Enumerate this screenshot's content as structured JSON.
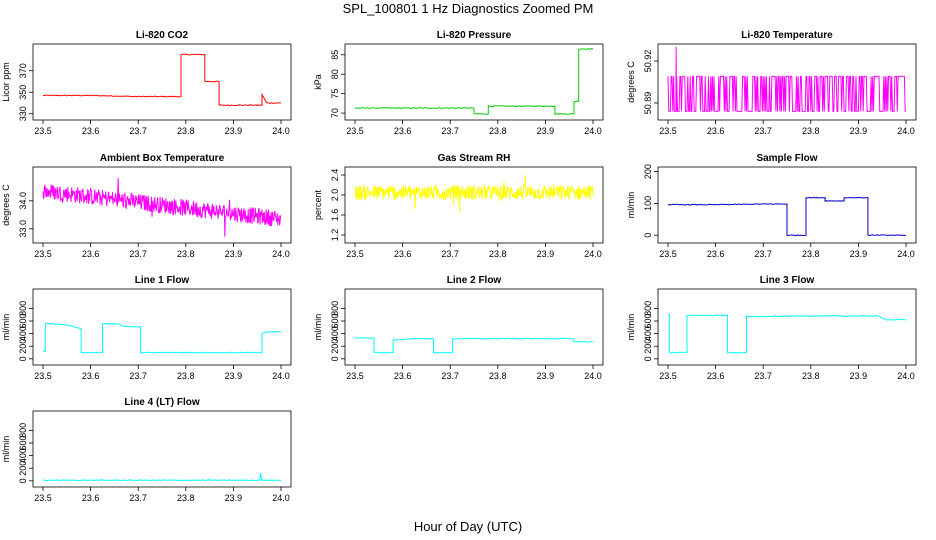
{
  "figure": {
    "title": "SPL_100801  1 Hz Diagnostics Zoomed PM",
    "xlabel": "Hour of Day (UTC)"
  },
  "chart_data": [
    {
      "type": "line",
      "title": "Li-820 CO2",
      "ylabel": "Licor ppm",
      "color": "#ff0000",
      "xlim": [
        23.5,
        24.0
      ],
      "ylim": [
        327,
        392
      ],
      "xticks": [
        23.5,
        23.6,
        23.7,
        23.8,
        23.9,
        24.0
      ],
      "xtick_labels": [
        "23.5",
        "23.6",
        "23.7",
        "23.8",
        "23.9",
        "24.0"
      ],
      "yticks": [
        330,
        350,
        370
      ],
      "ytick_labels": [
        "330",
        "350",
        "370"
      ],
      "x": [
        23.5,
        23.6,
        23.7,
        23.79,
        23.79,
        23.84,
        23.84,
        23.87,
        23.87,
        23.96,
        23.96,
        23.97,
        24.0
      ],
      "y": [
        347,
        347,
        346,
        346,
        385,
        385,
        360,
        360,
        338,
        338,
        348,
        340,
        340
      ]
    },
    {
      "type": "line",
      "title": "Li-820 Pressure",
      "ylabel": "kPa",
      "color": "#00cc00",
      "xlim": [
        23.5,
        24.0
      ],
      "ylim": [
        69,
        87
      ],
      "xticks": [
        23.5,
        23.6,
        23.7,
        23.8,
        23.9,
        24.0
      ],
      "xtick_labels": [
        "23.5",
        "23.6",
        "23.7",
        "23.8",
        "23.9",
        "24.0"
      ],
      "yticks": [
        70,
        75,
        80,
        85
      ],
      "ytick_labels": [
        "70",
        "75",
        "80",
        "85"
      ],
      "x": [
        23.5,
        23.6,
        23.75,
        23.75,
        23.78,
        23.78,
        23.83,
        23.92,
        23.92,
        23.96,
        23.96,
        23.97,
        23.97,
        24.0
      ],
      "y": [
        71.3,
        71.3,
        71.3,
        69.8,
        69.8,
        71.8,
        71.8,
        71.8,
        69.8,
        69.8,
        73,
        73,
        86.5,
        86.5
      ]
    },
    {
      "type": "line",
      "title": "Li-820 Temperature",
      "ylabel": "degrees C",
      "color": "#ff00ff",
      "xlim": [
        23.5,
        24.0
      ],
      "ylim": [
        50.88,
        50.93
      ],
      "xticks": [
        23.5,
        23.6,
        23.7,
        23.8,
        23.9,
        24.0
      ],
      "xtick_labels": [
        "23.5",
        "23.6",
        "23.7",
        "23.8",
        "23.9",
        "24.0"
      ],
      "yticks": [
        50.89,
        50.92
      ],
      "ytick_labels": [
        "50.89",
        "50.92"
      ],
      "noise": {
        "low": 50.884,
        "high": 50.909,
        "spikes_x": [
          23.517
        ],
        "spikes_y": [
          50.93
        ]
      }
    },
    {
      "type": "line",
      "title": "Ambient Box Temperature",
      "ylabel": "degrees C",
      "color": "#ff00ff",
      "xlim": [
        23.5,
        24.0
      ],
      "ylim": [
        32.6,
        35.1
      ],
      "xticks": [
        23.5,
        23.6,
        23.7,
        23.8,
        23.9,
        24.0
      ],
      "xtick_labels": [
        "23.5",
        "23.6",
        "23.7",
        "23.8",
        "23.9",
        "24.0"
      ],
      "yticks": [
        33.0,
        34.0
      ],
      "ytick_labels": [
        "33.0",
        "34.0"
      ],
      "trend": {
        "x": [
          23.5,
          24.0
        ],
        "y": [
          34.35,
          33.35
        ],
        "noise": 0.3
      }
    },
    {
      "type": "line",
      "title": "Gas Stream RH",
      "ylabel": "percent",
      "color": "#ffff00",
      "xlim": [
        23.5,
        24.0
      ],
      "ylim": [
        1.1,
        2.5
      ],
      "xticks": [
        23.5,
        23.6,
        23.7,
        23.8,
        23.9,
        24.0
      ],
      "xtick_labels": [
        "23.5",
        "23.6",
        "23.7",
        "23.8",
        "23.9",
        "24.0"
      ],
      "yticks": [
        1.2,
        1.6,
        2.0,
        2.4
      ],
      "ytick_labels": [
        "1.2",
        "1.6",
        "2.0",
        "2.4"
      ],
      "trend": {
        "x": [
          23.5,
          24.0
        ],
        "y": [
          2.05,
          2.05
        ],
        "noise": 0.15
      }
    },
    {
      "type": "line",
      "title": "Sample Flow",
      "ylabel": "ml/min",
      "color": "#0000cc",
      "xlim": [
        23.5,
        24.0
      ],
      "ylim": [
        -15,
        205
      ],
      "xticks": [
        23.5,
        23.6,
        23.7,
        23.8,
        23.9,
        24.0
      ],
      "xtick_labels": [
        "23.5",
        "23.6",
        "23.7",
        "23.8",
        "23.9",
        "24.0"
      ],
      "yticks": [
        0,
        100,
        200
      ],
      "ytick_labels": [
        "0",
        "100",
        "200"
      ],
      "x": [
        23.5,
        23.55,
        23.6,
        23.7,
        23.75,
        23.75,
        23.79,
        23.79,
        23.83,
        23.83,
        23.87,
        23.87,
        23.92,
        23.92,
        24.0
      ],
      "y": [
        96,
        96,
        96,
        98,
        98,
        0,
        0,
        118,
        118,
        108,
        108,
        118,
        118,
        0,
        0
      ]
    },
    {
      "type": "line",
      "title": "Line 1 Flow",
      "ylabel": "ml/min",
      "color": "#00ffff",
      "xlim": [
        23.5,
        24.0
      ],
      "ylim": [
        -50,
        1060
      ],
      "xticks": [
        23.5,
        23.6,
        23.7,
        23.8,
        23.9,
        24.0
      ],
      "xtick_labels": [
        "23.5",
        "23.6",
        "23.7",
        "23.8",
        "23.9",
        "24.0"
      ],
      "yticks": [
        0,
        200,
        400,
        600,
        800
      ],
      "ytick_labels": [
        "0",
        "200",
        "400",
        "600",
        "800"
      ],
      "x": [
        23.5,
        23.505,
        23.505,
        23.55,
        23.58,
        23.58,
        23.625,
        23.625,
        23.66,
        23.67,
        23.705,
        23.705,
        23.96,
        23.96,
        23.97,
        24.0
      ],
      "y": [
        120,
        120,
        560,
        540,
        480,
        100,
        100,
        560,
        550,
        510,
        510,
        100,
        100,
        400,
        430,
        430
      ]
    },
    {
      "type": "line",
      "title": "Line 2 Flow",
      "ylabel": "ml/min",
      "color": "#00ffff",
      "xlim": [
        23.5,
        24.0
      ],
      "ylim": [
        -50,
        1060
      ],
      "xticks": [
        23.5,
        23.6,
        23.7,
        23.8,
        23.9,
        24.0
      ],
      "xtick_labels": [
        "23.5",
        "23.6",
        "23.7",
        "23.8",
        "23.9",
        "24.0"
      ],
      "yticks": [
        0,
        200,
        400,
        600,
        800
      ],
      "ytick_labels": [
        "0",
        "200",
        "400",
        "600",
        "800"
      ],
      "x": [
        23.5,
        23.54,
        23.54,
        23.58,
        23.58,
        23.625,
        23.665,
        23.665,
        23.705,
        23.705,
        23.96,
        23.96,
        24.0
      ],
      "y": [
        330,
        330,
        100,
        100,
        300,
        320,
        320,
        100,
        100,
        320,
        320,
        270,
        270
      ]
    },
    {
      "type": "line",
      "title": "Line 3 Flow",
      "ylabel": "ml/min",
      "color": "#00ffff",
      "xlim": [
        23.5,
        24.0
      ],
      "ylim": [
        -50,
        1060
      ],
      "xticks": [
        23.5,
        23.6,
        23.7,
        23.8,
        23.9,
        24.0
      ],
      "xtick_labels": [
        "23.5",
        "23.6",
        "23.7",
        "23.8",
        "23.9",
        "24.0"
      ],
      "yticks": [
        0,
        200,
        400,
        600,
        800
      ],
      "ytick_labels": [
        "0",
        "200",
        "400",
        "600",
        "800"
      ],
      "x": [
        23.5,
        23.503,
        23.503,
        23.54,
        23.54,
        23.6,
        23.625,
        23.625,
        23.665,
        23.665,
        23.8,
        23.94,
        23.96,
        24.0
      ],
      "y": [
        700,
        700,
        100,
        100,
        690,
        690,
        690,
        100,
        100,
        670,
        680,
        680,
        620,
        620
      ]
    },
    {
      "type": "line",
      "title": "Line 4 (LT) Flow",
      "ylabel": "ml/min",
      "color": "#00ffff",
      "xlim": [
        23.5,
        24.0
      ],
      "ylim": [
        -50,
        1060
      ],
      "xticks": [
        23.5,
        23.6,
        23.7,
        23.8,
        23.9,
        24.0
      ],
      "xtick_labels": [
        "23.5",
        "23.6",
        "23.7",
        "23.8",
        "23.9",
        "24.0"
      ],
      "yticks": [
        0,
        200,
        400,
        600,
        800
      ],
      "ytick_labels": [
        "0",
        "200",
        "400",
        "600",
        "800"
      ],
      "x": [
        23.5,
        23.955,
        23.957,
        23.96,
        23.962,
        24.0
      ],
      "y": [
        10,
        10,
        120,
        10,
        10,
        10
      ]
    }
  ]
}
